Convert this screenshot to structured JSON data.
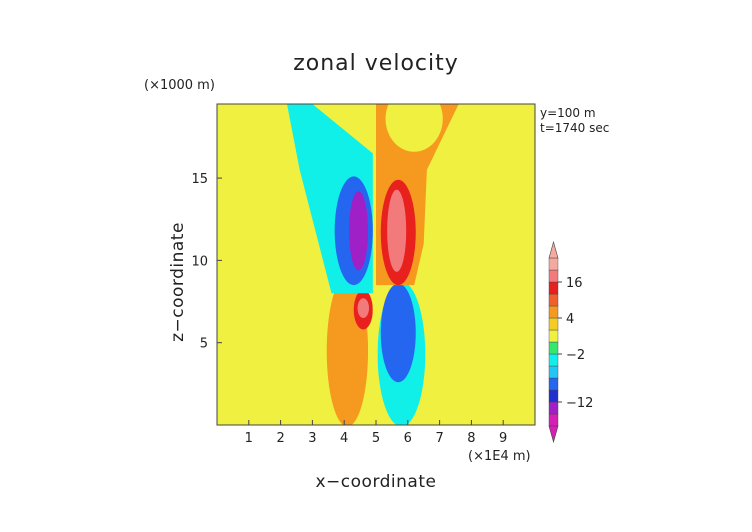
{
  "chart_data": {
    "type": "contour",
    "title": "zonal velocity",
    "xlabel": "x−coordinate",
    "ylabel": "z−coordinate",
    "x_unit": "(×1E4 m)",
    "y_unit": "(×1000 m)",
    "annotation": [
      "y=100 m",
      "t=1740 sec"
    ],
    "xlim": [
      0,
      10
    ],
    "ylim": [
      0,
      19.5
    ],
    "xticks": [
      1,
      2,
      3,
      4,
      5,
      6,
      7,
      8,
      9
    ],
    "yticks": [
      5,
      10,
      15
    ],
    "grid": false,
    "colorbar": {
      "levels": [
        -20,
        -16,
        -12,
        -8,
        -6,
        -4,
        -2,
        0,
        2,
        4,
        8,
        12,
        16,
        20
      ],
      "labels": [
        16,
        4,
        -2,
        -12
      ],
      "colors": [
        "#d61fb4",
        "#a020c8",
        "#2030d0",
        "#2466f0",
        "#22c8f5",
        "#11f0e8",
        "#33e86a",
        "#f0f040",
        "#f5cc22",
        "#f59a1e",
        "#f0602a",
        "#e8201e",
        "#f27a7a",
        "#f5a9a0"
      ],
      "extend": "both"
    },
    "regions": [
      {
        "name": "background",
        "value": 0,
        "shape": "rect",
        "x": [
          0,
          10
        ],
        "z": [
          0,
          19.5
        ]
      },
      {
        "name": "lower-half",
        "value": 1,
        "shape": "rect",
        "x": [
          0,
          10
        ],
        "z": [
          0,
          11.3
        ]
      },
      {
        "name": "upper-left-cap",
        "value": 1,
        "shape": "poly",
        "points": [
          [
            0,
            11.3
          ],
          [
            3.9,
            11.3
          ],
          [
            3.7,
            9.5
          ],
          [
            3.2,
            8.5
          ],
          [
            0,
            8.5
          ]
        ]
      },
      {
        "name": "lower-left-orange",
        "value": 4,
        "shape": "ellipse",
        "cx": 4.1,
        "cz": 4.5,
        "rx": 0.65,
        "rz": 4.6
      },
      {
        "name": "lower-right-cyan",
        "value": -3,
        "shape": "ellipse",
        "cx": 5.8,
        "cz": 4.3,
        "rx": 0.75,
        "rz": 4.4
      },
      {
        "name": "lower-right-blue",
        "value": -8,
        "shape": "ellipse",
        "cx": 5.7,
        "cz": 5.6,
        "rx": 0.55,
        "rz": 3.0
      },
      {
        "name": "lower-left-red",
        "value": 14,
        "shape": "ellipse",
        "cx": 4.6,
        "cz": 7.0,
        "rx": 0.3,
        "rz": 1.2
      },
      {
        "name": "lower-left-pink",
        "value": 18,
        "shape": "ellipse",
        "cx": 4.6,
        "cz": 7.1,
        "rx": 0.18,
        "rz": 0.6
      },
      {
        "name": "upper-left-cyan-plume",
        "value": -3,
        "shape": "poly",
        "points": [
          [
            2.2,
            19.5
          ],
          [
            3.0,
            19.5
          ],
          [
            4.9,
            16.5
          ],
          [
            4.9,
            8.0
          ],
          [
            3.6,
            8.0
          ],
          [
            3.2,
            11.0
          ],
          [
            2.6,
            15.5
          ]
        ]
      },
      {
        "name": "upper-left-blue",
        "value": -8,
        "shape": "ellipse",
        "cx": 4.3,
        "cz": 11.8,
        "rx": 0.6,
        "rz": 3.3
      },
      {
        "name": "upper-left-purple",
        "value": -16,
        "shape": "ellipse",
        "cx": 4.45,
        "cz": 11.8,
        "rx": 0.3,
        "rz": 2.4
      },
      {
        "name": "upper-right-orange",
        "value": 6,
        "shape": "poly",
        "points": [
          [
            5.0,
            19.5
          ],
          [
            7.6,
            19.5
          ],
          [
            6.6,
            15.5
          ],
          [
            6.5,
            11.0
          ],
          [
            6.2,
            8.5
          ],
          [
            5.0,
            8.5
          ]
        ]
      },
      {
        "name": "upper-right-yellow-cap",
        "value": 1,
        "shape": "ellipse",
        "cx": 6.2,
        "cz": 18.6,
        "rx": 0.9,
        "rz": 2.0
      },
      {
        "name": "upper-right-red",
        "value": 12,
        "shape": "ellipse",
        "cx": 5.7,
        "cz": 11.7,
        "rx": 0.55,
        "rz": 3.2
      },
      {
        "name": "upper-right-pink",
        "value": 18,
        "shape": "ellipse",
        "cx": 5.65,
        "cz": 11.8,
        "rx": 0.3,
        "rz": 2.5
      },
      {
        "name": "center-green-strip",
        "value": 0,
        "shape": "rect",
        "x": [
          4.9,
          5.05
        ],
        "z": [
          0,
          8.0
        ]
      }
    ]
  }
}
